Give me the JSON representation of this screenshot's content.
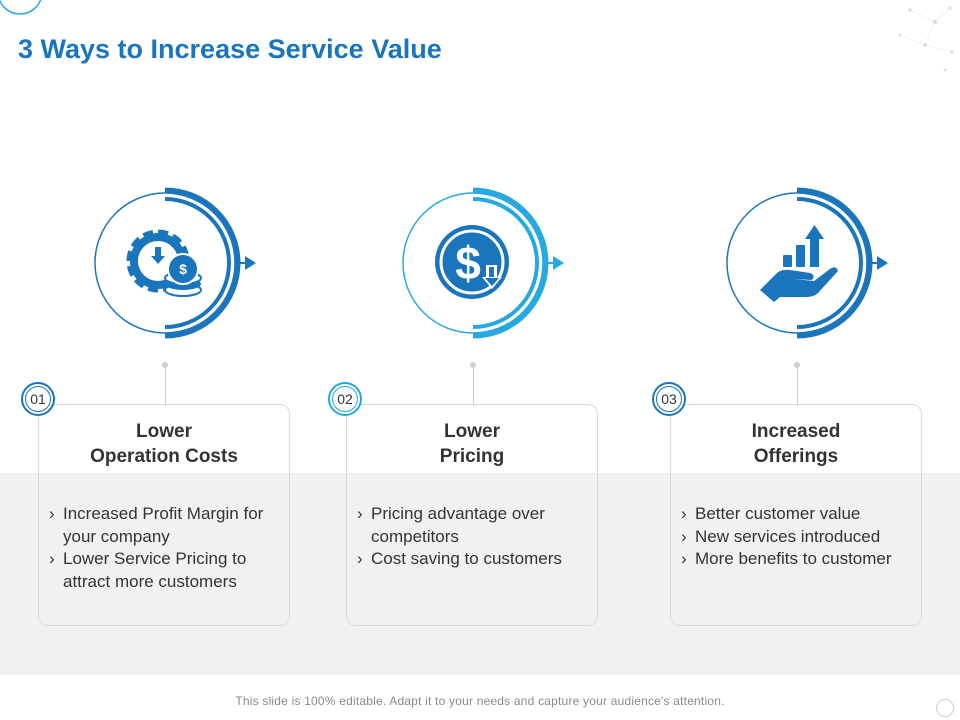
{
  "title": "3 Ways to Increase Service Value",
  "footer": "This slide is 100% editable. Adapt it to your needs and capture your audience's attention.",
  "colors": {
    "primary": "#1a75bc",
    "accent": "#26a9e0",
    "band": "#f1f1f1",
    "text": "#333333"
  },
  "items": [
    {
      "number": "01",
      "icon": "gear-coins-icon",
      "title_line1": "Lower",
      "title_line2": "Operation Costs",
      "bullets": [
        "Increased Profit Margin for your company",
        "Lower Service Pricing to attract more customers"
      ]
    },
    {
      "number": "02",
      "icon": "dollar-down-icon",
      "title_line1": "Lower",
      "title_line2": "Pricing",
      "bullets": [
        "Pricing advantage over competitors",
        "Cost saving to customers"
      ]
    },
    {
      "number": "03",
      "icon": "hand-growth-icon",
      "title_line1": "Increased",
      "title_line2": "Offerings",
      "bullets": [
        "Better customer value",
        "New services introduced",
        "More benefits to customer"
      ]
    }
  ]
}
